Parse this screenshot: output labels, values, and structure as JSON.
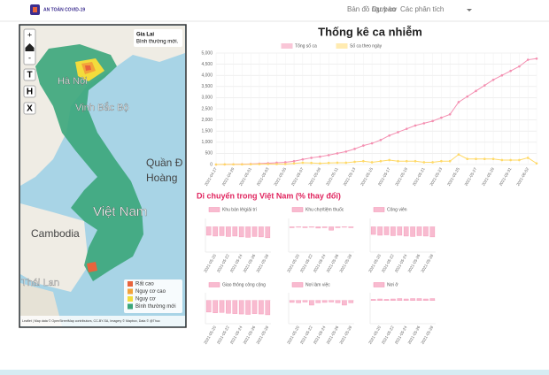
{
  "navbar": {
    "brand": "AN TOÀN COVID-19",
    "links": [
      "Bản đồ nguy cơ",
      "Dự báo",
      "Các phân tích"
    ]
  },
  "map": {
    "controls": [
      "+",
      "-",
      "T",
      "H",
      "X"
    ],
    "labels": [
      "Hà Nội",
      "Vịnh Bắc Bộ",
      "Quần Đ",
      "Hoàng",
      "Việt Nam",
      "Cambodia",
      "Thái Lan"
    ],
    "info": {
      "province": "Gia Lai",
      "status": "Bình thường mới."
    },
    "legend": [
      {
        "name": "Rất cao",
        "color": "#e8643c"
      },
      {
        "name": "Nguy cơ cao",
        "color": "#f2a33a"
      },
      {
        "name": "Nguy cơ",
        "color": "#f2dc3c"
      },
      {
        "name": "Bình thường mới",
        "color": "#3aa67a"
      }
    ],
    "attribution": "Leaflet | Map data © OpenStreetMap contributors, CC-BY-SA, Imagery © Mapbox, Data © @Thuc"
  },
  "mobility_title": "Di chuyển trong Việt Nam (% thay đổi)",
  "chart_data": [
    {
      "type": "line",
      "title": "Thống kê ca nhiễm",
      "categories": [
        "2021-04-27",
        null,
        "2021-04-29",
        null,
        "2021-05-01",
        null,
        "2021-05-03",
        null,
        "2021-05-05",
        null,
        "2021-05-07",
        null,
        "2021-05-09",
        null,
        "2021-05-11",
        null,
        "2021-05-13",
        null,
        "2021-05-15",
        null,
        "2021-05-17",
        null,
        "2021-05-19",
        null,
        "2021-05-21",
        null,
        "2021-05-23",
        null,
        "2021-05-25",
        null,
        "2021-05-27",
        null,
        "2021-05-29",
        null,
        "2021-05-31",
        null,
        "2021-06-02",
        null
      ],
      "series": [
        {
          "name": "Tổng số ca",
          "color": "#f48fb1",
          "values": [
            0,
            5,
            10,
            15,
            25,
            40,
            60,
            80,
            100,
            150,
            230,
            300,
            350,
            420,
            500,
            580,
            700,
            850,
            950,
            1100,
            1300,
            1450,
            1600,
            1750,
            1850,
            1950,
            2100,
            2250,
            2800,
            3050,
            3300,
            3550,
            3800,
            4000,
            4200,
            4400,
            4700,
            4750
          ]
        },
        {
          "name": "Số ca theo ngày",
          "color": "#ffd966",
          "values": [
            0,
            5,
            5,
            5,
            10,
            15,
            20,
            20,
            20,
            50,
            80,
            70,
            50,
            70,
            80,
            80,
            120,
            150,
            100,
            150,
            200,
            150,
            150,
            150,
            100,
            100,
            150,
            150,
            450,
            250,
            250,
            250,
            250,
            200,
            200,
            200,
            300,
            50
          ]
        }
      ],
      "ylim": [
        0,
        5000
      ],
      "yticks": [
        0,
        500,
        {
          "value": 1000,
          "label": "1,000"
        },
        {
          "value": 1500,
          "label": "1,500"
        },
        {
          "value": 2000,
          "label": "2,000"
        },
        {
          "value": 2500,
          "label": "2,500"
        },
        {
          "value": 3000,
          "label": "3,000"
        },
        {
          "value": 3500,
          "label": "3,500"
        },
        {
          "value": 4000,
          "label": "4,000"
        },
        {
          "value": 4500,
          "label": "4,500"
        },
        {
          "value": 5000,
          "label": "5,000"
        }
      ],
      "grid": true
    },
    {
      "type": "bar",
      "categories": [
        null,
        "2021-05-20",
        null,
        "2021-05-22",
        null,
        "2021-05-24",
        null,
        "2021-05-26",
        null,
        "2021-05-28"
      ],
      "ylim": [
        -60,
        20
      ],
      "series": [
        {
          "name": "Khu bán lẻ/giải trí",
          "color": "#f8bbd0",
          "values": [
            -20,
            -22,
            -21,
            -23,
            -22,
            -24,
            -25,
            -23,
            -24,
            -26
          ]
        }
      ]
    },
    {
      "type": "bar",
      "categories": [
        null,
        "2021-05-20",
        null,
        "2021-05-22",
        null,
        "2021-05-24",
        null,
        "2021-05-26",
        null,
        "2021-05-28"
      ],
      "ylim": [
        -60,
        20
      ],
      "series": [
        {
          "name": "Khu chợ/tiệm thuốc",
          "color": "#f8bbd0",
          "values": [
            -2,
            -1,
            -2,
            -1,
            -3,
            -2,
            -8,
            -2,
            -1,
            -2
          ]
        }
      ]
    },
    {
      "type": "bar",
      "categories": [
        null,
        "2021-05-20",
        null,
        "2021-05-22",
        null,
        "2021-05-24",
        null,
        "2021-05-26",
        null,
        "2021-05-28"
      ],
      "ylim": [
        -60,
        20
      ],
      "series": [
        {
          "name": "Công viên",
          "color": "#f8bbd0",
          "values": [
            -18,
            -20,
            -19,
            -21,
            -20,
            -22,
            -23,
            -21,
            -22,
            -24
          ]
        }
      ]
    },
    {
      "type": "bar",
      "categories": [
        null,
        "2021-05-20",
        null,
        "2021-05-22",
        null,
        "2021-05-24",
        null,
        "2021-05-26",
        null,
        "2021-05-28"
      ],
      "ylim": [
        -60,
        20
      ],
      "series": [
        {
          "name": "Giao thông công cộng",
          "color": "#f8bbd0",
          "values": [
            -30,
            -32,
            -31,
            -33,
            -34,
            -35,
            -36,
            -34,
            -35,
            -37
          ]
        }
      ]
    },
    {
      "type": "bar",
      "categories": [
        null,
        "2021-05-20",
        null,
        "2021-05-22",
        null,
        "2021-05-24",
        null,
        "2021-05-26",
        null,
        "2021-05-28"
      ],
      "ylim": [
        -60,
        20
      ],
      "series": [
        {
          "name": "Nơi làm việc",
          "color": "#f8bbd0",
          "values": [
            -5,
            -6,
            -4,
            -12,
            -6,
            -5,
            -4,
            -6,
            -12,
            -6
          ]
        }
      ]
    },
    {
      "type": "bar",
      "categories": [
        null,
        "2021-05-20",
        null,
        "2021-05-22",
        null,
        "2021-05-24",
        null,
        "2021-05-26",
        null,
        "2021-05-28"
      ],
      "ylim": [
        -60,
        20
      ],
      "series": [
        {
          "name": "Nơi ở",
          "color": "#f8bbd0",
          "values": [
            3,
            4,
            3,
            4,
            5,
            4,
            5,
            5,
            4,
            5
          ]
        }
      ]
    }
  ]
}
